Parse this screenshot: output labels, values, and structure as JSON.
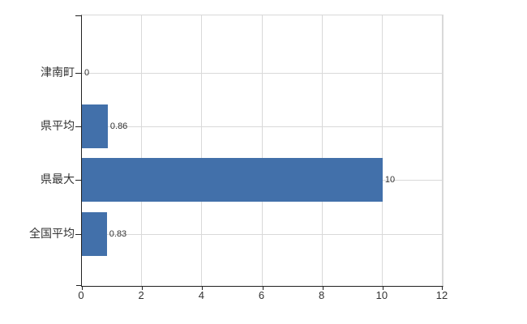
{
  "chart_data": {
    "type": "bar",
    "orientation": "horizontal",
    "title": "",
    "categories": [
      "津南町",
      "県平均",
      "県最大",
      "全国平均"
    ],
    "values": [
      0,
      0.86,
      10,
      0.83
    ],
    "value_labels": [
      "0",
      "0.86",
      "10",
      "0.83"
    ],
    "x_ticks": [
      0,
      2,
      4,
      6,
      8,
      10,
      12
    ],
    "xlim": [
      0,
      12
    ],
    "grid": true,
    "legend_position": "none",
    "colors": {
      "bar": "#4270aa",
      "axis": "#222222",
      "grid": "#d9d9d9",
      "text": "#333333",
      "background": "#ffffff"
    }
  }
}
